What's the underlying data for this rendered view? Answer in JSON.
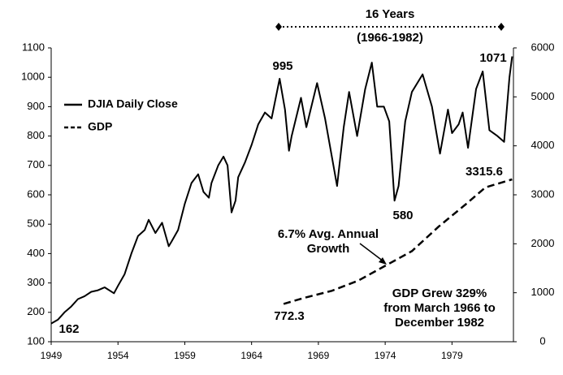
{
  "chart_data": {
    "type": "line",
    "series": [
      {
        "name": "DJIA Daily Close",
        "color": "#000000",
        "style": "solid",
        "axis": "y",
        "x": [
          1949.0,
          1949.5,
          1950.0,
          1950.5,
          1951.0,
          1951.5,
          1952.0,
          1952.5,
          1953.0,
          1953.7,
          1954.0,
          1954.5,
          1955.0,
          1955.5,
          1956.0,
          1956.3,
          1956.8,
          1957.3,
          1957.8,
          1958.0,
          1958.5,
          1959.0,
          1959.5,
          1960.0,
          1960.4,
          1960.8,
          1961.0,
          1961.5,
          1961.9,
          1962.2,
          1962.5,
          1962.8,
          1963.0,
          1963.5,
          1964.0,
          1964.5,
          1965.0,
          1965.5,
          1966.1,
          1966.5,
          1966.8,
          1967.0,
          1967.7,
          1968.1,
          1968.9,
          1969.5,
          1970.4,
          1970.9,
          1971.3,
          1971.9,
          1972.5,
          1973.0,
          1973.4,
          1973.9,
          1974.3,
          1974.7,
          1975.0,
          1975.5,
          1976.0,
          1976.8,
          1977.5,
          1978.1,
          1978.7,
          1979.0,
          1979.5,
          1979.8,
          1980.2,
          1980.8,
          1981.3,
          1981.8,
          1982.4,
          1982.9,
          1983.3,
          1983.5
        ],
        "values": [
          162,
          175,
          200,
          220,
          245,
          255,
          270,
          275,
          285,
          265,
          290,
          330,
          400,
          460,
          480,
          515,
          470,
          505,
          425,
          440,
          480,
          570,
          640,
          670,
          610,
          590,
          640,
          700,
          730,
          700,
          540,
          580,
          660,
          710,
          770,
          840,
          880,
          860,
          995,
          890,
          750,
          800,
          930,
          830,
          980,
          860,
          630,
          830,
          950,
          800,
          960,
          1050,
          900,
          900,
          850,
          580,
          630,
          850,
          950,
          1010,
          900,
          740,
          890,
          810,
          840,
          880,
          760,
          960,
          1020,
          820,
          800,
          780,
          1000,
          1071
        ]
      },
      {
        "name": "GDP",
        "color": "#000000",
        "style": "dashed",
        "axis": "y2",
        "x": [
          1966.4,
          1968.0,
          1970.0,
          1972.0,
          1974.0,
          1976.0,
          1978.0,
          1980.0,
          1981.5,
          1983.5
        ],
        "values": [
          772.3,
          900,
          1040,
          1250,
          1550,
          1850,
          2350,
          2800,
          3150,
          3315.6
        ]
      }
    ],
    "xlim": [
      1949,
      1983.6
    ],
    "xticks": [
      1949,
      1954,
      1959,
      1964,
      1969,
      1974,
      1979
    ],
    "ylim": [
      100,
      1100
    ],
    "yticks": [
      100,
      200,
      300,
      400,
      500,
      600,
      700,
      800,
      900,
      1000,
      1100
    ],
    "y2lim": [
      0,
      6000
    ],
    "y2ticks": [
      0,
      1000,
      2000,
      3000,
      4000,
      5000,
      6000
    ],
    "annotations": [
      [
        "16 Years"
      ],
      [
        "(1966-1982)"
      ],
      [
        "995"
      ],
      [
        "1071"
      ],
      [
        "580"
      ],
      [
        "162"
      ],
      [
        "772.3"
      ],
      [
        "3315.6"
      ],
      [
        "6.7% Avg. Annual",
        "Growth"
      ],
      [
        "GDP Grew 329%",
        "from March 1966 to",
        "December 1982"
      ]
    ]
  }
}
